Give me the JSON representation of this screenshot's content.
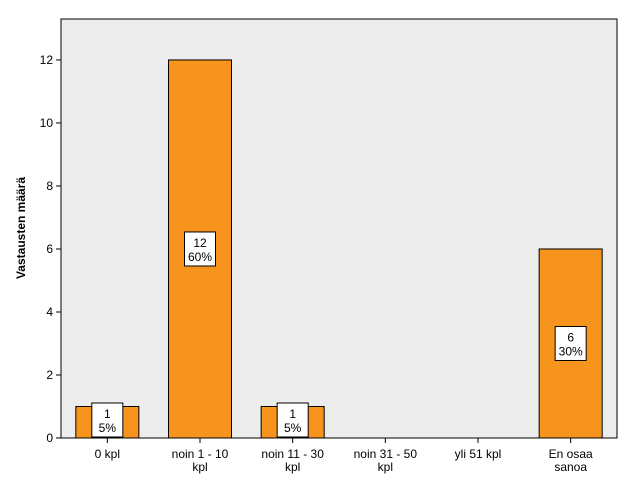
{
  "chart_data": {
    "type": "bar",
    "title": "",
    "xlabel": "",
    "ylabel": "Vastausten määrä",
    "categories": [
      [
        "0 kpl"
      ],
      [
        "noin 1 - 10",
        "kpl"
      ],
      [
        "noin 11 - 30",
        "kpl"
      ],
      [
        "noin 31 - 50",
        "kpl"
      ],
      [
        "yli 51 kpl"
      ],
      [
        "En osaa",
        "sanoa"
      ]
    ],
    "values": [
      1,
      12,
      1,
      0,
      0,
      6
    ],
    "percent_labels": [
      "5%",
      "60%",
      "5%",
      "",
      "",
      "30%"
    ],
    "ylim": [
      0,
      13.3
    ],
    "yticks": [
      0,
      2,
      4,
      6,
      8,
      10,
      12
    ],
    "grid": false,
    "colors": {
      "plot_background": "#ececec",
      "bar_fill": "#f7941d",
      "bar_stroke": "#000000",
      "label_box_fill": "#ffffff"
    }
  }
}
